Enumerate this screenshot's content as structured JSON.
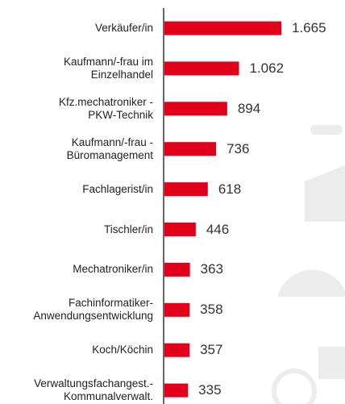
{
  "chart_data": {
    "type": "bar",
    "orientation": "horizontal",
    "categories": [
      "Verkäufer/in",
      "Kaufmann/-frau im\nEinzelhandel",
      "Kfz.mechatroniker -\nPKW-Technik",
      "Kaufmann/-frau -\nBüromanagement",
      "Fachlagerist/in",
      "Tischler/in",
      "Mechatroniker/in",
      "Fachinformatiker-\nAnwendungsentwicklung",
      "Koch/Köchin",
      "Verwaltungsfachangest.-\nKommunalverwalt."
    ],
    "values": [
      1665,
      1062,
      894,
      736,
      618,
      446,
      363,
      358,
      357,
      335
    ],
    "value_labels": [
      "1.665",
      "1.062",
      "894",
      "736",
      "618",
      "446",
      "363",
      "358",
      "357",
      "335"
    ],
    "color": "#e2001a"
  }
}
